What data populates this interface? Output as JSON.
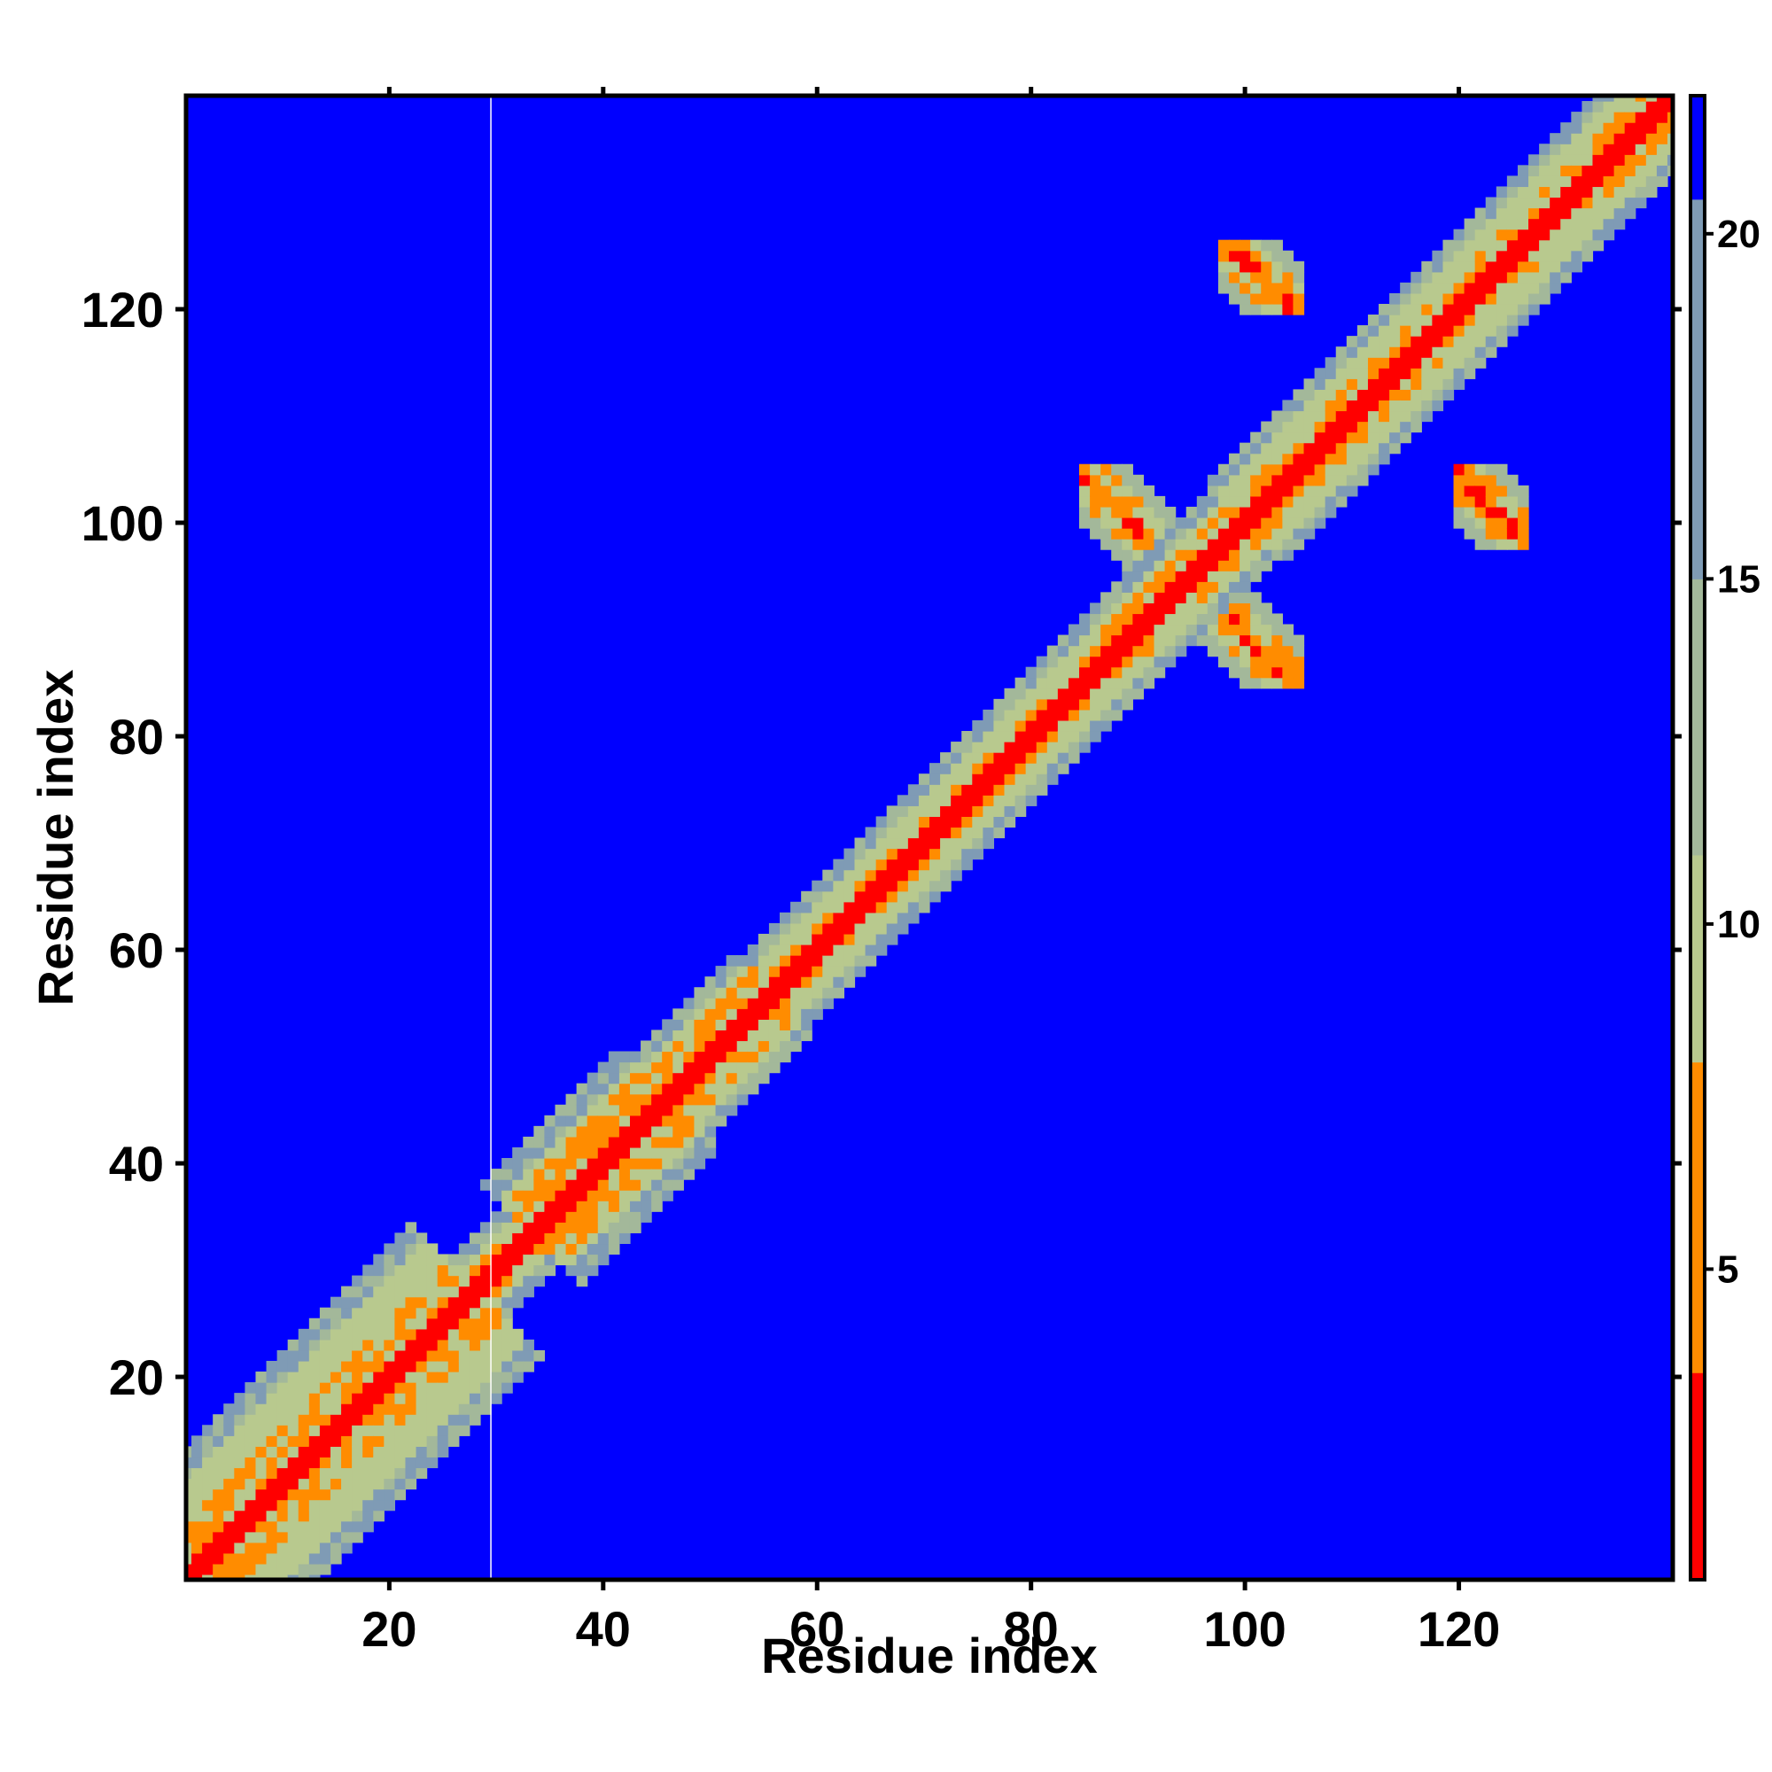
{
  "chart_data": {
    "type": "heatmap",
    "title": "",
    "xlabel": "Residue index",
    "ylabel": "Residue index",
    "xlim": [
      1,
      140
    ],
    "ylim": [
      1,
      140
    ],
    "x_ticks": [
      20,
      40,
      60,
      80,
      100,
      120
    ],
    "y_ticks": [
      20,
      40,
      60,
      80,
      100,
      120
    ],
    "grid": false,
    "colorbar": {
      "ticks": [
        5,
        10,
        15,
        20
      ],
      "range": [
        0.5,
        22
      ],
      "bands": [
        {
          "from": 0.5,
          "to": 3.5,
          "color": "#ff0000"
        },
        {
          "from": 3.5,
          "to": 8,
          "color": "#ff8c00"
        },
        {
          "from": 8,
          "to": 11,
          "color": "#b8c98e"
        },
        {
          "from": 11,
          "to": 15,
          "color": "#a3b89a"
        },
        {
          "from": 15,
          "to": 20.5,
          "color": "#7f9bb5"
        },
        {
          "from": 20.5,
          "to": 22,
          "color": "#0000ff"
        }
      ]
    },
    "colors": {
      "background": "#0000ff",
      "contact": "#ff0000",
      "close": "#ff8c00",
      "near": "#b8c98e",
      "mid": "#a3b89a",
      "far": "#7f9bb5"
    },
    "diagonal_band_halfwidth": [
      {
        "from": 1,
        "to": 28,
        "near": 12,
        "close": 4
      },
      {
        "from": 29,
        "to": 33,
        "near": 5,
        "close": 1
      },
      {
        "from": 34,
        "to": 46,
        "near": 9,
        "close": 4
      },
      {
        "from": 47,
        "to": 56,
        "near": 7,
        "close": 3
      },
      {
        "from": 57,
        "to": 88,
        "near": 6,
        "close": 1
      },
      {
        "from": 89,
        "to": 100,
        "near": 6,
        "close": 2
      },
      {
        "from": 101,
        "to": 140,
        "near": 7,
        "close": 1
      }
    ],
    "off_diagonal_contacts": [
      {
        "i_range": [
          85,
          94
        ],
        "j_range": [
          95,
          105
        ],
        "note": "antiparallel contact near residues 85-105"
      },
      {
        "i_range": [
          98,
          105
        ],
        "j_range": [
          120,
          126
        ],
        "note": "contact near residues 98-105 with 120-126"
      },
      {
        "i_range": [
          120,
          126
        ],
        "j_range": [
          99,
          104
        ],
        "note": "contact near residues 120-126 with 99-104"
      }
    ],
    "artifact_column_x": 29.5
  }
}
